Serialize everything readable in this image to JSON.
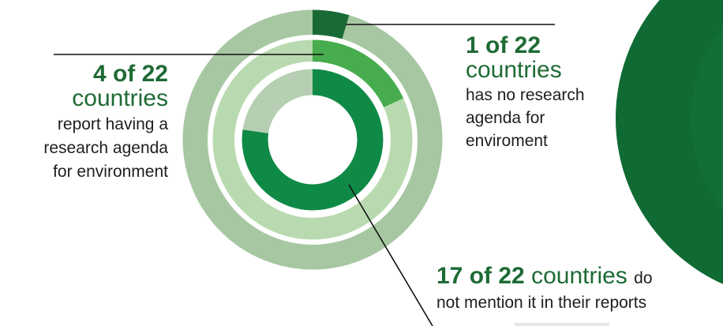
{
  "chart_data": {
    "type": "pie",
    "total": 22,
    "rings": [
      {
        "ring": "outer",
        "value": 1,
        "highlight_color": "#196a35",
        "track_color": "#a7c7a3"
      },
      {
        "ring": "middle",
        "value": 4,
        "highlight_color": "#47ac4e",
        "track_color": "#b9dab0"
      },
      {
        "ring": "inner",
        "value": 17,
        "highlight_color": "#0e8a46",
        "track_color": "#b6cfb2"
      }
    ],
    "annotations": {
      "left": {
        "count": "4 of 22",
        "word": "countries",
        "text_lines": [
          "report having a",
          "research agenda",
          "for environment"
        ]
      },
      "right": {
        "count": "1 of 22",
        "word": "countries",
        "text_lines": [
          "has no research",
          "agenda for",
          "enviroment"
        ]
      },
      "bottom": {
        "count": "17 of 22",
        "word": "countries",
        "tail": "do",
        "line2": "not mention it in their reports"
      }
    }
  },
  "colors": {
    "accent_dark": "#196a35",
    "label_green": "#1e6b35",
    "background_shape": "#0f6a33"
  }
}
